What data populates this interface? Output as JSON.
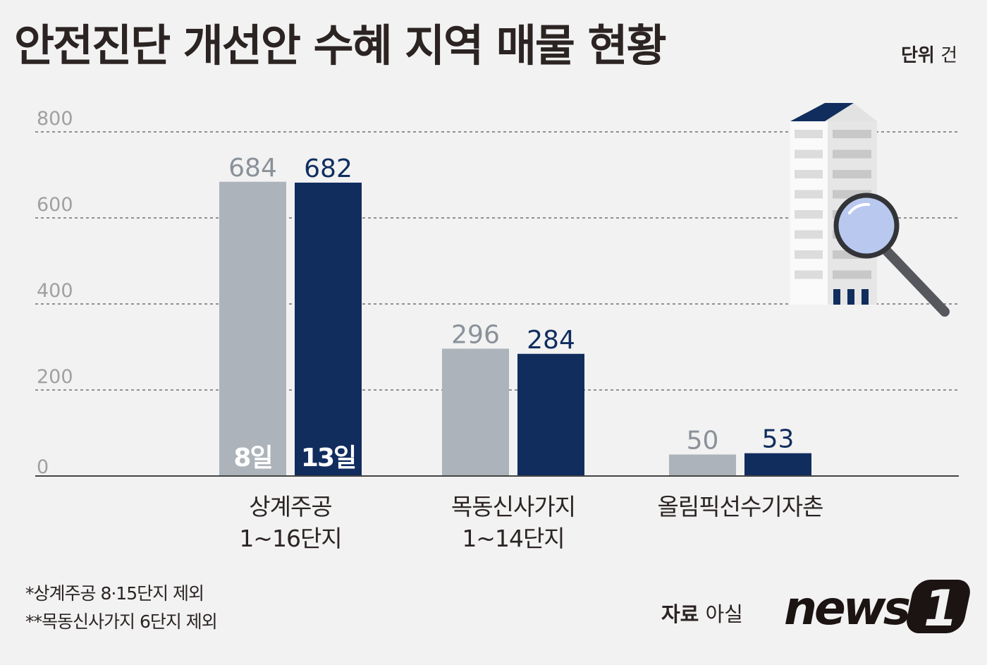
{
  "title": "안전진단 개선안 수혜 지역 매물 현황",
  "unit": {
    "label": "단위",
    "value": "건"
  },
  "chart_data": {
    "type": "bar",
    "categories": [
      [
        "상계주공",
        "1~16단지"
      ],
      [
        "목동신사가지",
        "1~14단지"
      ],
      [
        "올림픽선수기자촌"
      ]
    ],
    "series": [
      {
        "name": "8일",
        "values": [
          684,
          296,
          50
        ],
        "color": "#adb3ba",
        "label_color": "#8a9199"
      },
      {
        "name": "13일",
        "values": [
          682,
          284,
          53
        ],
        "color": "#102d5e",
        "label_color": "#102d5e"
      }
    ],
    "ylim": [
      0,
      800
    ],
    "yticks": [
      "0",
      "200",
      "400",
      "600",
      "800"
    ],
    "grid": true,
    "legend": "inside-bars"
  },
  "footnotes": [
    "*상계주공 8·15단지 제외",
    "**목동신사가지 6단지 제외"
  ],
  "source": {
    "label": "자료",
    "value": "아실"
  },
  "logo": {
    "text": "news",
    "mark": "1"
  },
  "illustration": {
    "icon": "building-magnifier-icon"
  }
}
